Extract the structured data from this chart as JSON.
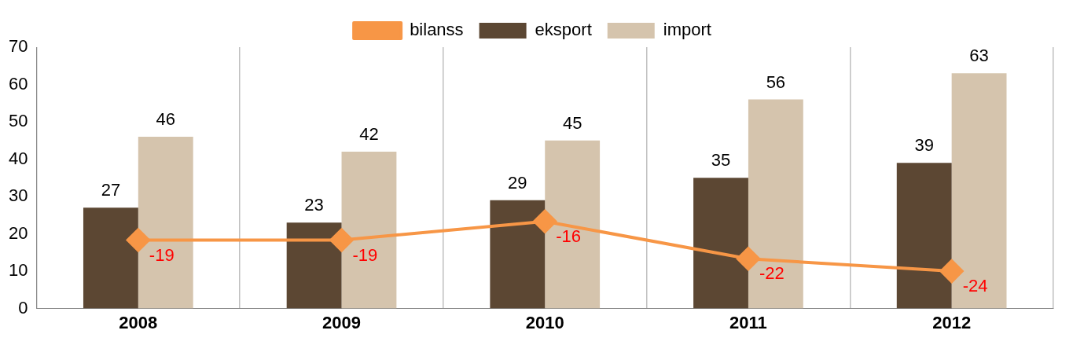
{
  "chart_data": {
    "type": "bar",
    "categories": [
      "2008",
      "2009",
      "2010",
      "2011",
      "2012"
    ],
    "series": [
      {
        "name": "eksport",
        "color": "#5c4733",
        "values": [
          27,
          23,
          29,
          35,
          39
        ]
      },
      {
        "name": "import",
        "color": "#d5c4ad",
        "values": [
          46,
          42,
          45,
          56,
          63
        ]
      },
      {
        "name": "bilanss",
        "type": "line",
        "axis": "y2",
        "color": "#f79646",
        "values": [
          -19,
          -19,
          -16,
          -22,
          -24
        ]
      }
    ],
    "ylim": [
      0,
      70
    ],
    "yticks": [
      0,
      10,
      20,
      30,
      40,
      50,
      60,
      70
    ],
    "y2lim": [
      -30,
      12
    ],
    "data_labels": true,
    "grid": "x",
    "legend": "top",
    "marker": "diamond",
    "line_style": "solid"
  }
}
